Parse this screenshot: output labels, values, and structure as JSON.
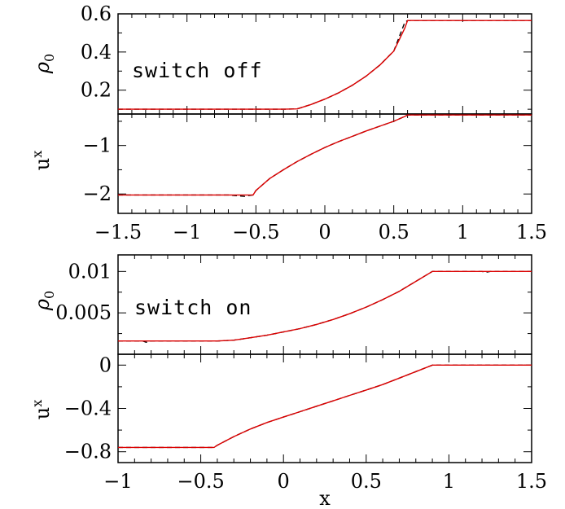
{
  "chart_data": [
    {
      "type": "line",
      "panel": "top-upper",
      "annotation": "switch off",
      "ylabel": "ρ",
      "ylabel_sub": "0",
      "xlim": [
        -1.5,
        1.5
      ],
      "ylim": [
        0.075,
        0.6
      ],
      "yticks": [
        0.2,
        0.4,
        0.6
      ],
      "ytick_labels": [
        "0.2",
        "0.4",
        "0.6"
      ],
      "series": [
        {
          "color": "#000000",
          "dash": "6,4",
          "x": [
            -1.5,
            -0.6,
            -0.3,
            -0.2,
            -0.1,
            0,
            0.1,
            0.2,
            0.3,
            0.4,
            0.5,
            0.58,
            0.6,
            1.5
          ],
          "y": [
            0.1,
            0.1,
            0.1,
            0.102,
            0.125,
            0.153,
            0.186,
            0.226,
            0.274,
            0.332,
            0.405,
            0.555,
            0.565,
            0.565
          ]
        },
        {
          "color": "#dd0000",
          "dash": "",
          "x": [
            -1.5,
            -0.6,
            -0.3,
            -0.2,
            -0.1,
            0,
            0.1,
            0.2,
            0.3,
            0.4,
            0.5,
            0.58,
            0.6,
            1.5
          ],
          "y": [
            0.1,
            0.1,
            0.1,
            0.102,
            0.125,
            0.153,
            0.186,
            0.226,
            0.274,
            0.332,
            0.405,
            0.525,
            0.565,
            0.565
          ]
        }
      ]
    },
    {
      "type": "line",
      "panel": "top-lower",
      "ylabel": "u",
      "ylabel_sup": "x",
      "xlim": [
        -1.5,
        1.5
      ],
      "ylim": [
        -2.4,
        -0.35
      ],
      "yticks": [
        -2,
        -1
      ],
      "ytick_labels": [
        "−2",
        "−1"
      ],
      "xticks": [
        -1.5,
        -1,
        -0.5,
        0,
        0.5,
        1,
        1.5
      ],
      "xtick_labels": [
        "−1.5",
        "−1",
        "−0.5",
        "0",
        "0.5",
        "1",
        "1.5"
      ],
      "series": [
        {
          "color": "#000000",
          "dash": "6,4",
          "x": [
            -1.5,
            -0.7,
            -0.62,
            -0.58,
            -0.55,
            -0.52,
            -0.5,
            -0.4,
            -0.3,
            -0.2,
            -0.1,
            0,
            0.1,
            0.2,
            0.3,
            0.4,
            0.5,
            0.58,
            0.6,
            1.5
          ],
          "y": [
            -2.02,
            -2.02,
            -2.04,
            -2.05,
            -2.03,
            -2.02,
            -1.93,
            -1.68,
            -1.5,
            -1.33,
            -1.18,
            -1.04,
            -0.92,
            -0.81,
            -0.7,
            -0.6,
            -0.5,
            -0.4,
            -0.37,
            -0.37
          ]
        },
        {
          "color": "#dd0000",
          "dash": "",
          "x": [
            -1.5,
            -0.52,
            -0.5,
            -0.4,
            -0.3,
            -0.2,
            -0.1,
            0,
            0.1,
            0.2,
            0.3,
            0.4,
            0.5,
            0.58,
            0.6,
            1.5
          ],
          "y": [
            -2.02,
            -2.02,
            -1.93,
            -1.68,
            -1.5,
            -1.33,
            -1.18,
            -1.04,
            -0.92,
            -0.81,
            -0.7,
            -0.6,
            -0.5,
            -0.4,
            -0.37,
            -0.37
          ]
        }
      ]
    },
    {
      "type": "line",
      "panel": "bottom-upper",
      "annotation": "switch on",
      "ylabel": "ρ",
      "ylabel_sub": "0",
      "xlim": [
        -1,
        1.5
      ],
      "ylim": [
        0.0,
        0.012
      ],
      "yticks": [
        0.005,
        0.01
      ],
      "ytick_labels": [
        "0.005",
        "0.01"
      ],
      "series": [
        {
          "color": "#000000",
          "dash": "6,4",
          "x": [
            -1,
            -0.85,
            -0.83,
            -0.8,
            -0.5,
            -0.4,
            -0.3,
            -0.2,
            -0.1,
            0,
            0.1,
            0.2,
            0.3,
            0.4,
            0.5,
            0.6,
            0.7,
            0.8,
            0.9,
            1.2,
            1.22,
            1.25,
            1.5
          ],
          "y": [
            0.0016,
            0.0016,
            0.00145,
            0.0016,
            0.0016,
            0.0016,
            0.0017,
            0.002,
            0.0023,
            0.0027,
            0.0031,
            0.0036,
            0.0042,
            0.0049,
            0.0057,
            0.0066,
            0.0076,
            0.0088,
            0.01,
            0.01,
            0.0099,
            0.01,
            0.01
          ]
        },
        {
          "color": "#dd0000",
          "dash": "",
          "x": [
            -1,
            -0.4,
            -0.3,
            -0.2,
            -0.1,
            0,
            0.1,
            0.2,
            0.3,
            0.4,
            0.5,
            0.6,
            0.7,
            0.8,
            0.9,
            1.5
          ],
          "y": [
            0.0016,
            0.0016,
            0.0017,
            0.002,
            0.0023,
            0.0027,
            0.0031,
            0.0036,
            0.0042,
            0.0049,
            0.0057,
            0.0066,
            0.0076,
            0.0088,
            0.01,
            0.01
          ]
        }
      ]
    },
    {
      "type": "line",
      "panel": "bottom-lower",
      "ylabel": "u",
      "ylabel_sup": "x",
      "xlabel": "x",
      "xlim": [
        -1,
        1.5
      ],
      "ylim": [
        -0.9,
        0.1
      ],
      "yticks": [
        -0.8,
        -0.4,
        0
      ],
      "ytick_labels": [
        "−0.8",
        "−0.4",
        "0"
      ],
      "xticks": [
        -1,
        -0.5,
        0,
        0.5,
        1,
        1.5
      ],
      "xtick_labels": [
        "−1",
        "−0.5",
        "0",
        "0.5",
        "1",
        "1.5"
      ],
      "series": [
        {
          "color": "#000000",
          "dash": "6,4",
          "x": [
            -1,
            -0.42,
            -0.4,
            -0.35,
            -0.3,
            -0.2,
            -0.1,
            0,
            0.1,
            0.2,
            0.3,
            0.4,
            0.5,
            0.6,
            0.7,
            0.8,
            0.9,
            1.2,
            1.5
          ],
          "y": [
            -0.76,
            -0.76,
            -0.74,
            -0.7,
            -0.66,
            -0.59,
            -0.53,
            -0.48,
            -0.43,
            -0.38,
            -0.33,
            -0.28,
            -0.23,
            -0.18,
            -0.12,
            -0.06,
            0.0,
            0.0,
            0.0
          ]
        },
        {
          "color": "#dd0000",
          "dash": "",
          "x": [
            -1,
            -0.42,
            -0.4,
            -0.35,
            -0.3,
            -0.2,
            -0.1,
            0,
            0.1,
            0.2,
            0.3,
            0.4,
            0.5,
            0.6,
            0.7,
            0.8,
            0.9,
            1.5
          ],
          "y": [
            -0.76,
            -0.76,
            -0.74,
            -0.7,
            -0.66,
            -0.59,
            -0.53,
            -0.48,
            -0.43,
            -0.38,
            -0.33,
            -0.28,
            -0.23,
            -0.18,
            -0.12,
            -0.06,
            0.0,
            0.0
          ]
        }
      ]
    }
  ]
}
